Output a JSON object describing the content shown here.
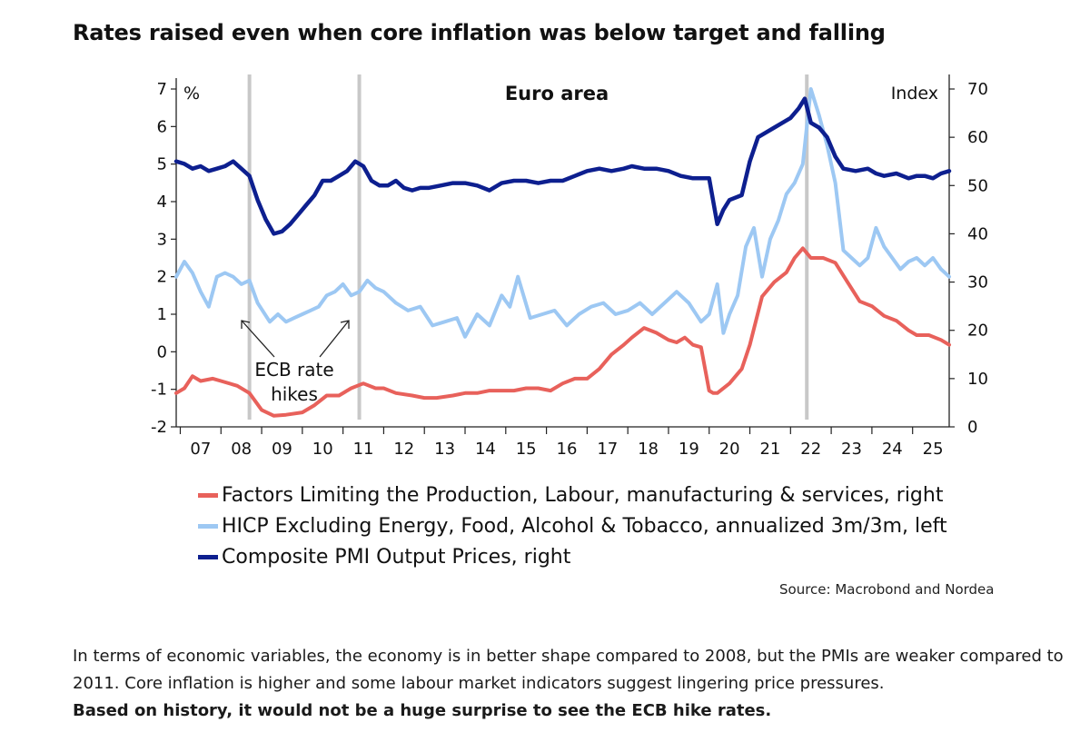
{
  "headline": "Rates raised even when core inflation was below target and falling",
  "source": "Source: Macrobond and Nordea",
  "body": {
    "text": "In terms of economic variables, the economy is in better shape compared to 2008, but the PMIs are weaker compared to 2011. Core inflation is higher and some labour market indicators suggest lingering price pressures.",
    "bold": "Based on history, it would not be a huge surprise to see the ECB hike rates."
  },
  "colors": {
    "labour": "#e8615b",
    "hicp": "#9dc8f3",
    "pmi": "#0d1f8f",
    "vline": "#c8c8c8"
  },
  "chart_data": {
    "type": "line",
    "title": "Euro area",
    "ylabel_left": "%",
    "ylabel_right": "Index",
    "ylim_left": [
      -2,
      7
    ],
    "ylim_right": [
      0,
      70
    ],
    "yticks_left": [
      "7",
      "6",
      "5",
      "4",
      "3",
      "2",
      "1",
      "0",
      "-1",
      "-2"
    ],
    "yticks_right": [
      "70",
      "60",
      "50",
      "40",
      "30",
      "20",
      "10",
      "0"
    ],
    "xticks": [
      "07",
      "08",
      "09",
      "10",
      "11",
      "12",
      "13",
      "14",
      "15",
      "16",
      "17",
      "18",
      "19",
      "20",
      "21",
      "22",
      "23",
      "24",
      "25"
    ],
    "xlim": [
      2006.9,
      2025.9
    ],
    "grid": false,
    "vertical_lines": [
      2008.7,
      2011.4,
      2022.4
    ],
    "annotation": [
      "ECB rate",
      "hikes"
    ],
    "series": [
      {
        "name": "Factors Limiting the Production, Labour, manufacturing & services, right",
        "axis": "right",
        "x": [
          2006.9,
          2007.1,
          2007.3,
          2007.5,
          2007.8,
          2008.0,
          2008.4,
          2008.7,
          2009.0,
          2009.3,
          2009.6,
          2010.0,
          2010.3,
          2010.6,
          2010.9,
          2011.2,
          2011.5,
          2011.8,
          2012.0,
          2012.3,
          2012.7,
          2013.0,
          2013.3,
          2013.7,
          2014.0,
          2014.3,
          2014.6,
          2014.9,
          2015.2,
          2015.5,
          2015.8,
          2016.1,
          2016.4,
          2016.7,
          2017.0,
          2017.3,
          2017.6,
          2017.9,
          2018.1,
          2018.4,
          2018.7,
          2019.0,
          2019.2,
          2019.4,
          2019.6,
          2019.8,
          2020.0,
          2020.1,
          2020.2,
          2020.5,
          2020.8,
          2021.0,
          2021.3,
          2021.6,
          2021.9,
          2022.1,
          2022.3,
          2022.5,
          2022.8,
          2023.1,
          2023.4,
          2023.7,
          2024.0,
          2024.3,
          2024.6,
          2024.9,
          2025.1,
          2025.4,
          2025.7,
          2025.9
        ],
        "values": [
          7,
          8,
          10.5,
          9.5,
          10,
          9.5,
          8.5,
          7,
          3.5,
          2.3,
          2.5,
          3,
          4.5,
          6.5,
          6.5,
          8,
          9,
          8,
          8,
          7,
          6.5,
          6,
          6,
          6.5,
          7,
          7,
          7.5,
          7.5,
          7.5,
          8,
          8,
          7.5,
          9,
          10,
          10,
          12,
          15,
          17,
          18.5,
          20.5,
          19.5,
          18,
          17.5,
          18.5,
          17,
          16.5,
          7.5,
          7,
          7,
          9,
          12,
          17,
          27,
          30,
          32,
          35,
          37,
          35,
          35,
          34,
          30,
          26,
          25,
          23,
          22,
          20,
          19,
          19,
          18,
          17
        ]
      },
      {
        "name": "HICP Excluding Energy, Food, Alcohol & Tobacco, annualized 3m/3m, left",
        "axis": "left",
        "x": [
          2006.9,
          2007.1,
          2007.3,
          2007.5,
          2007.7,
          2007.9,
          2008.1,
          2008.3,
          2008.5,
          2008.7,
          2008.9,
          2009.2,
          2009.4,
          2009.6,
          2009.8,
          2010.0,
          2010.2,
          2010.4,
          2010.6,
          2010.8,
          2011.0,
          2011.2,
          2011.4,
          2011.6,
          2011.8,
          2012.0,
          2012.3,
          2012.6,
          2012.9,
          2013.2,
          2013.5,
          2013.8,
          2014.0,
          2014.3,
          2014.6,
          2014.9,
          2015.1,
          2015.3,
          2015.6,
          2015.9,
          2016.2,
          2016.5,
          2016.8,
          2017.1,
          2017.4,
          2017.7,
          2018.0,
          2018.3,
          2018.6,
          2018.9,
          2019.2,
          2019.5,
          2019.8,
          2020.0,
          2020.2,
          2020.35,
          2020.5,
          2020.7,
          2020.9,
          2021.1,
          2021.3,
          2021.5,
          2021.7,
          2021.9,
          2022.1,
          2022.3,
          2022.5,
          2022.7,
          2022.9,
          2023.1,
          2023.3,
          2023.5,
          2023.7,
          2023.9,
          2024.1,
          2024.3,
          2024.5,
          2024.7,
          2024.9,
          2025.1,
          2025.3,
          2025.5,
          2025.7,
          2025.9
        ],
        "values": [
          2.0,
          2.4,
          2.1,
          1.6,
          1.2,
          2.0,
          2.1,
          2.0,
          1.8,
          1.9,
          1.3,
          0.8,
          1.0,
          0.8,
          0.9,
          1.0,
          1.1,
          1.2,
          1.5,
          1.6,
          1.8,
          1.5,
          1.6,
          1.9,
          1.7,
          1.6,
          1.3,
          1.1,
          1.2,
          0.7,
          0.8,
          0.9,
          0.4,
          1.0,
          0.7,
          1.5,
          1.2,
          2.0,
          0.9,
          1.0,
          1.1,
          0.7,
          1.0,
          1.2,
          1.3,
          1.0,
          1.1,
          1.3,
          1.0,
          1.3,
          1.6,
          1.3,
          0.8,
          1.0,
          1.8,
          0.5,
          1.0,
          1.5,
          2.8,
          3.3,
          2.0,
          3.0,
          3.5,
          4.2,
          4.5,
          5.0,
          7.0,
          6.3,
          5.5,
          4.5,
          2.7,
          2.5,
          2.3,
          2.5,
          3.3,
          2.8,
          2.5,
          2.2,
          2.4,
          2.5,
          2.3,
          2.5,
          2.2,
          2.0
        ]
      },
      {
        "name": "Composite PMI Output Prices, right",
        "axis": "right",
        "x": [
          2006.9,
          2007.1,
          2007.3,
          2007.5,
          2007.7,
          2007.9,
          2008.1,
          2008.3,
          2008.5,
          2008.7,
          2008.9,
          2009.1,
          2009.3,
          2009.5,
          2009.7,
          2009.9,
          2010.1,
          2010.3,
          2010.5,
          2010.7,
          2010.9,
          2011.1,
          2011.3,
          2011.5,
          2011.7,
          2011.9,
          2012.1,
          2012.3,
          2012.5,
          2012.7,
          2012.9,
          2013.1,
          2013.4,
          2013.7,
          2014.0,
          2014.3,
          2014.6,
          2014.9,
          2015.2,
          2015.5,
          2015.8,
          2016.1,
          2016.4,
          2016.7,
          2017.0,
          2017.3,
          2017.6,
          2017.9,
          2018.1,
          2018.4,
          2018.7,
          2019.0,
          2019.3,
          2019.6,
          2019.8,
          2020.0,
          2020.2,
          2020.35,
          2020.5,
          2020.8,
          2021.0,
          2021.2,
          2021.4,
          2021.6,
          2021.8,
          2022.0,
          2022.2,
          2022.35,
          2022.5,
          2022.7,
          2022.9,
          2023.1,
          2023.3,
          2023.6,
          2023.9,
          2024.1,
          2024.3,
          2024.6,
          2024.9,
          2025.1,
          2025.3,
          2025.5,
          2025.7,
          2025.9
        ],
        "values": [
          55,
          54.5,
          53.5,
          54,
          53,
          53.5,
          54,
          55,
          53.5,
          52,
          47,
          43,
          40,
          40.5,
          42,
          44,
          46,
          48,
          51,
          51,
          52,
          53,
          55,
          54,
          51,
          50,
          50,
          51,
          49.5,
          49,
          49.5,
          49.5,
          50,
          50.5,
          50.5,
          50,
          49,
          50.5,
          51,
          51,
          50.5,
          51,
          51,
          52,
          53,
          53.5,
          53,
          53.5,
          54,
          53.5,
          53.5,
          53,
          52,
          51.5,
          51.5,
          51.5,
          42,
          45,
          47,
          48,
          55,
          60,
          61,
          62,
          63,
          64,
          66,
          68,
          63,
          62,
          60,
          56,
          53.5,
          53,
          53.5,
          52.5,
          52,
          52.5,
          51.5,
          52,
          52,
          51.5,
          52.5,
          53
        ]
      }
    ]
  }
}
